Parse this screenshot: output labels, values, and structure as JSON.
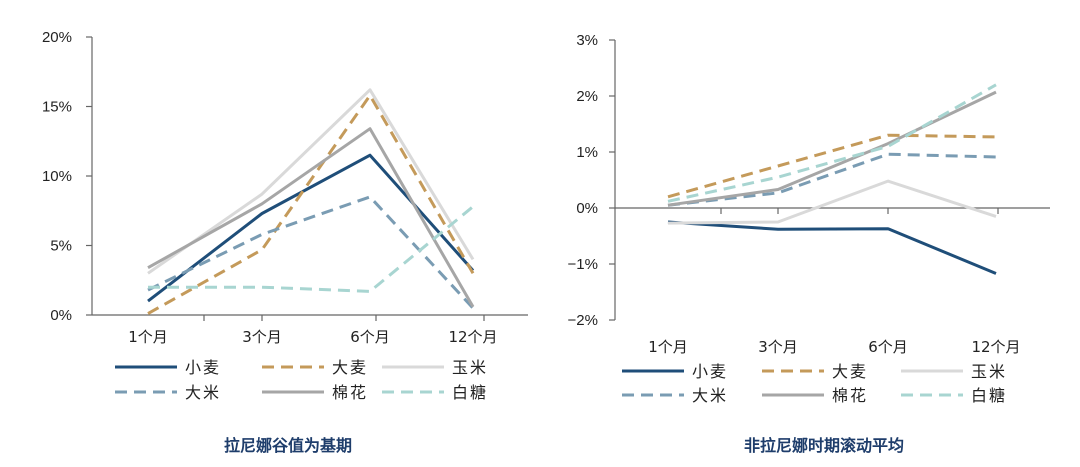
{
  "chart_data": [
    {
      "type": "line",
      "caption": "拉尼娜谷值为基期",
      "categories": [
        "1个月",
        "3个月",
        "6个月",
        "12个月"
      ],
      "ylim": [
        0,
        20
      ],
      "yticks": [
        0,
        5,
        10,
        15,
        20
      ],
      "ytick_labels": [
        "0%",
        "5%",
        "10%",
        "15%",
        "20%"
      ],
      "legend": {
        "position": "bottom",
        "columns": 3
      },
      "series": [
        {
          "name": "小麦",
          "values": [
            1.0,
            7.3,
            11.5,
            3.2
          ],
          "color": "#1f4e79",
          "dash": "solid"
        },
        {
          "name": "大麦",
          "values": [
            0.1,
            4.7,
            15.8,
            3.0
          ],
          "color": "#c49a5a",
          "dash": "dashed"
        },
        {
          "name": "玉米",
          "values": [
            3.0,
            8.7,
            16.2,
            4.0
          ],
          "color": "#d9d9d9",
          "dash": "solid"
        },
        {
          "name": "大米",
          "values": [
            1.8,
            5.8,
            8.5,
            0.5
          ],
          "color": "#7a9cb3",
          "dash": "dashed"
        },
        {
          "name": "棉花",
          "values": [
            3.4,
            8.0,
            13.4,
            0.6
          ],
          "color": "#a6a6a6",
          "dash": "solid"
        },
        {
          "name": "白糖",
          "values": [
            2.0,
            2.0,
            1.7,
            7.8
          ],
          "color": "#a8d5d1",
          "dash": "dashed"
        }
      ]
    },
    {
      "type": "line",
      "caption": "非拉尼娜时期滚动平均",
      "categories": [
        "1个月",
        "3个月",
        "6个月",
        "12个月"
      ],
      "ylim": [
        -2,
        3
      ],
      "yticks": [
        -2,
        -1,
        0,
        1,
        2,
        3
      ],
      "ytick_labels": [
        "−2%",
        "−1%",
        "0%",
        "1%",
        "2%",
        "3%"
      ],
      "legend": {
        "position": "bottom",
        "columns": 3
      },
      "series": [
        {
          "name": "小麦",
          "values": [
            -0.25,
            -0.38,
            -0.37,
            -1.17
          ],
          "color": "#1f4e79",
          "dash": "solid"
        },
        {
          "name": "大麦",
          "values": [
            0.2,
            0.75,
            1.3,
            1.27
          ],
          "color": "#c49a5a",
          "dash": "dashed"
        },
        {
          "name": "玉米",
          "values": [
            -0.27,
            -0.25,
            0.48,
            -0.15
          ],
          "color": "#d9d9d9",
          "dash": "solid"
        },
        {
          "name": "大米",
          "values": [
            0.05,
            0.27,
            0.96,
            0.91
          ],
          "color": "#7a9cb3",
          "dash": "dashed"
        },
        {
          "name": "棉花",
          "values": [
            0.05,
            0.33,
            1.15,
            2.07
          ],
          "color": "#a6a6a6",
          "dash": "solid"
        },
        {
          "name": "白糖",
          "values": [
            0.12,
            0.55,
            1.1,
            2.2
          ],
          "color": "#a8d5d1",
          "dash": "dashed"
        }
      ]
    }
  ]
}
